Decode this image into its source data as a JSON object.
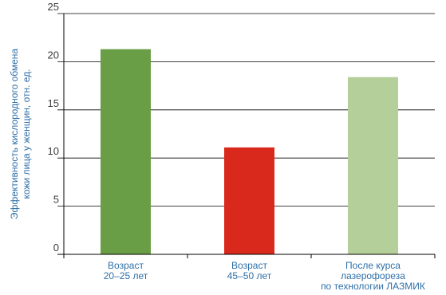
{
  "chart_data": {
    "type": "bar",
    "title": "",
    "ylabel": [
      "Эффективность кислородного обмена",
      "кожи лица у женщин, отн. ед."
    ],
    "xlabel": "",
    "ylim": [
      0,
      25
    ],
    "yticks": [
      0,
      5,
      10,
      15,
      20,
      25
    ],
    "grid": true,
    "categories": [
      [
        "Возраст",
        "20–25 лет"
      ],
      [
        "Возраст",
        "45–50 лет"
      ],
      [
        "После курса",
        "лазерофореза",
        "по технологии ЛАЗМИК"
      ]
    ],
    "values": [
      21.3,
      11.1,
      18.4
    ],
    "colors": [
      "#6a9e46",
      "#d9281c",
      "#b5cf9b"
    ]
  }
}
